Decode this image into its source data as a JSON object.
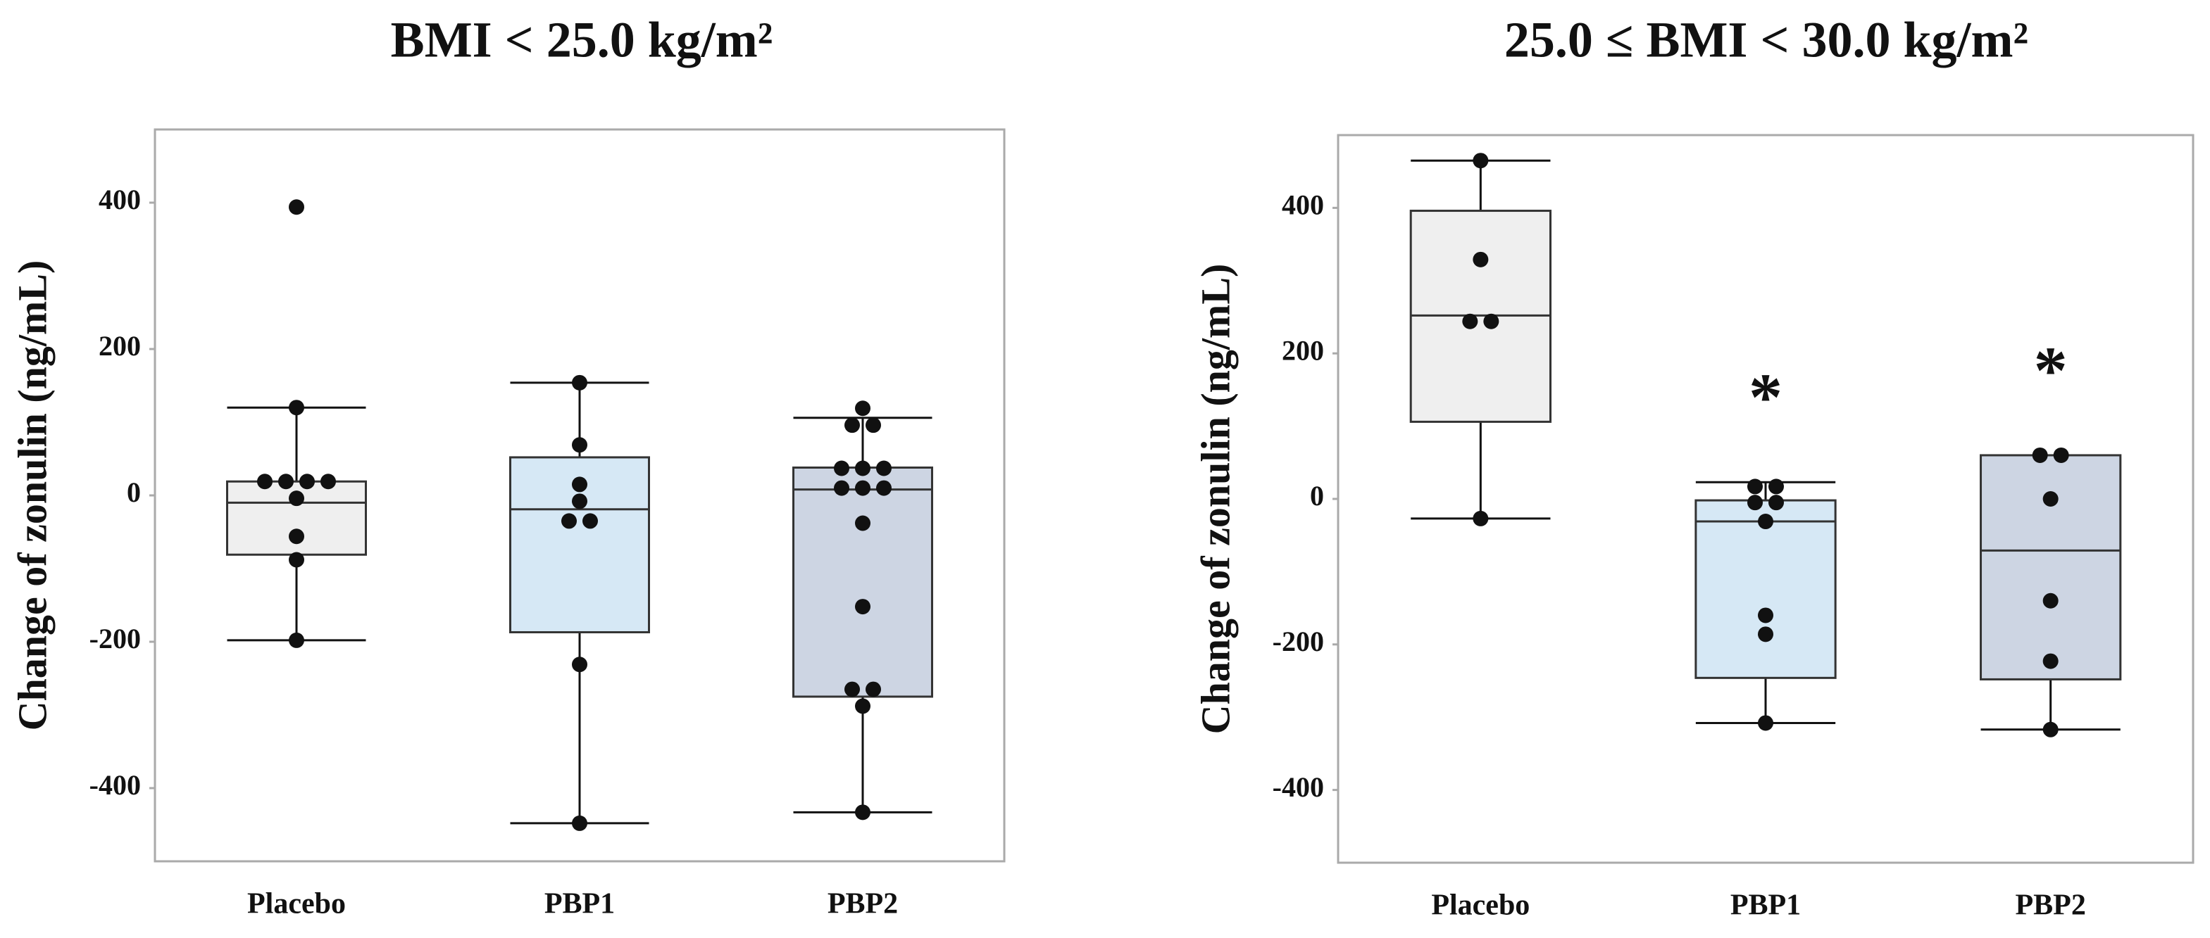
{
  "chart_data": [
    {
      "type": "box",
      "title": "BMI < 25.0 kg/m²",
      "ylabel": "Change of zonulin (ng/mL)",
      "categories": [
        "Placebo",
        "PBP1",
        "PBP2"
      ],
      "boxes": [
        {
          "color": "#efefef",
          "min": -198,
          "q1": -81,
          "median": -10,
          "q3": 19,
          "max": 120,
          "points": [
            394,
            120,
            19,
            19,
            19,
            19,
            -4,
            -56,
            -88,
            -198
          ]
        },
        {
          "color": "#d6e8f5",
          "min": -448,
          "q1": -187,
          "median": -19,
          "q3": 52,
          "max": 154,
          "points": [
            154,
            69,
            15,
            -8,
            -35,
            -35,
            -231,
            -448
          ]
        },
        {
          "color": "#cdd5e3",
          "min": -433,
          "q1": -275,
          "median": 8,
          "q3": 38,
          "max": 106,
          "points": [
            119,
            96,
            96,
            37,
            37,
            37,
            10,
            10,
            10,
            -38,
            -152,
            -265,
            -265,
            -288,
            -433
          ]
        }
      ],
      "ylim": [
        -500,
        500
      ],
      "yticks": [
        -400,
        -200,
        0,
        200,
        400
      ],
      "grid": false,
      "annotations": []
    },
    {
      "type": "box",
      "title": "25.0 ≤  BMI < 30.0 kg/m²",
      "ylabel": "Change of zonulin (ng/mL)",
      "categories": [
        "Placebo",
        "PBP1",
        "PBP2"
      ],
      "boxes": [
        {
          "color": "#efefef",
          "min": -27,
          "q1": 106,
          "median": 252,
          "q3": 396,
          "max": 465,
          "points": [
            465,
            329,
            244,
            244,
            -27
          ]
        },
        {
          "color": "#d6e8f5",
          "min": -308,
          "q1": -246,
          "median": -31,
          "q3": -2,
          "max": 23,
          "points": [
            17,
            17,
            -5,
            -5,
            -31,
            -160,
            -186,
            -308
          ]
        },
        {
          "color": "#cdd5e3",
          "min": -317,
          "q1": -248,
          "median": -71,
          "q3": 60,
          "max": 60,
          "points": [
            60,
            60,
            0,
            -140,
            -223,
            -317
          ]
        }
      ],
      "ylim": [
        -500,
        500
      ],
      "yticks": [
        -400,
        -200,
        0,
        200,
        400
      ],
      "grid": false,
      "annotations": [
        {
          "text": "*",
          "category": 1
        },
        {
          "text": "*",
          "category": 2
        }
      ]
    }
  ]
}
